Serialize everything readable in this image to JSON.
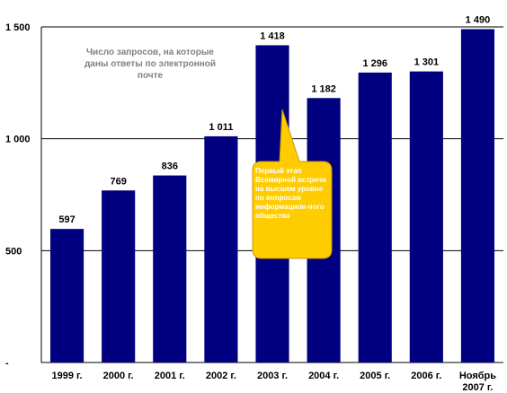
{
  "chart_data": {
    "type": "bar",
    "categories": [
      "1999 г.",
      "2000 г.",
      "2001 г.",
      "2002 г.",
      "2003 г.",
      "2004 г.",
      "2005 г.",
      "2006 г.",
      "Ноябрь 2007 г."
    ],
    "values": [
      597,
      769,
      836,
      1011,
      1418,
      1182,
      1296,
      1301,
      1490
    ],
    "value_labels": [
      "597",
      "769",
      "836",
      "1 011",
      "1 418",
      "1 182",
      "1 296",
      "1 301",
      "1 490"
    ],
    "yticks": [
      "-",
      "500",
      "1 000",
      "1 500"
    ],
    "ytick_values": [
      0,
      500,
      1000,
      1500
    ],
    "ylim": [
      0,
      1500
    ],
    "grid": true,
    "bar_color": "#000080",
    "note": "Число запросов, на которые даны ответы по электронной почте",
    "callout": {
      "text": "Первый этап Всемирной встречи на высшем уровне по вопросам информацион-ного общества",
      "color": "#FFCC00",
      "points_to": "2003 г."
    }
  }
}
